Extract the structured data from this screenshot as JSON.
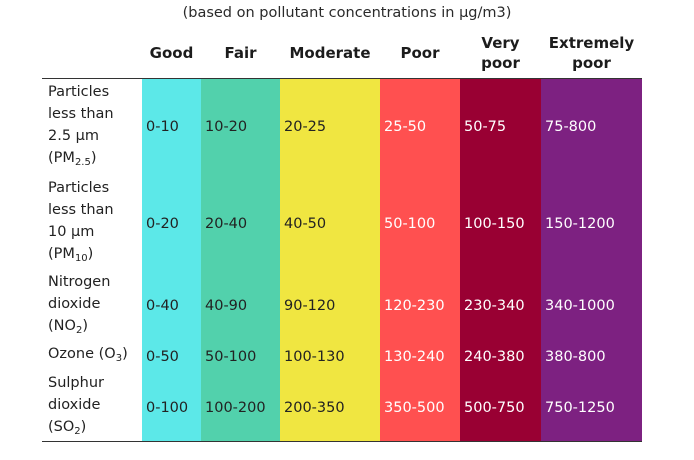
{
  "caption": "(based on pollutant concentrations in μg/m3)",
  "colors": {
    "good": "#5ce8e8",
    "fair": "#52d1ac",
    "moderate": "#f0e641",
    "poor": "#ff5050",
    "very_poor": "#990033",
    "extremely_poor": "#7d2181"
  },
  "columns": [
    {
      "id": "good",
      "label_lines": [
        "Good"
      ]
    },
    {
      "id": "fair",
      "label_lines": [
        "Fair"
      ]
    },
    {
      "id": "moderate",
      "label_lines": [
        "Moderate"
      ]
    },
    {
      "id": "poor",
      "label_lines": [
        "Poor"
      ]
    },
    {
      "id": "very_poor",
      "label_lines": [
        "Very",
        "poor"
      ]
    },
    {
      "id": "extremely_poor",
      "label_lines": [
        "Extremely",
        "poor"
      ]
    }
  ],
  "rows": [
    {
      "label_lines": [
        "Particles",
        "less than",
        "2.5 µm"
      ],
      "formula": "PM",
      "formula_sub": "2.5",
      "values": [
        "0-10",
        "10-20",
        "20-25",
        "25-50",
        "50-75",
        "75-800"
      ]
    },
    {
      "label_lines": [
        "Particles",
        "less than",
        "10 µm"
      ],
      "formula": "PM",
      "formula_sub": "10",
      "values": [
        "0-20",
        "20-40",
        "40-50",
        "50-100",
        "100-150",
        "150-1200"
      ]
    },
    {
      "label_lines": [
        "Nitrogen",
        "dioxide"
      ],
      "formula": "NO",
      "formula_sub": "2",
      "values": [
        "0-40",
        "40-90",
        "90-120",
        "120-230",
        "230-340",
        "340-1000"
      ]
    },
    {
      "label_lines": [
        "Ozone (O",
        ")"
      ],
      "formula": "",
      "formula_sub": "3",
      "inline": true,
      "values": [
        "0-50",
        "50-100",
        "100-130",
        "130-240",
        "240-380",
        "380-800"
      ]
    },
    {
      "label_lines": [
        "Sulphur",
        "dioxide"
      ],
      "formula": "SO",
      "formula_sub": "2",
      "values": [
        "0-100",
        "100-200",
        "200-350",
        "350-500",
        "500-750",
        "750-1250"
      ]
    }
  ]
}
